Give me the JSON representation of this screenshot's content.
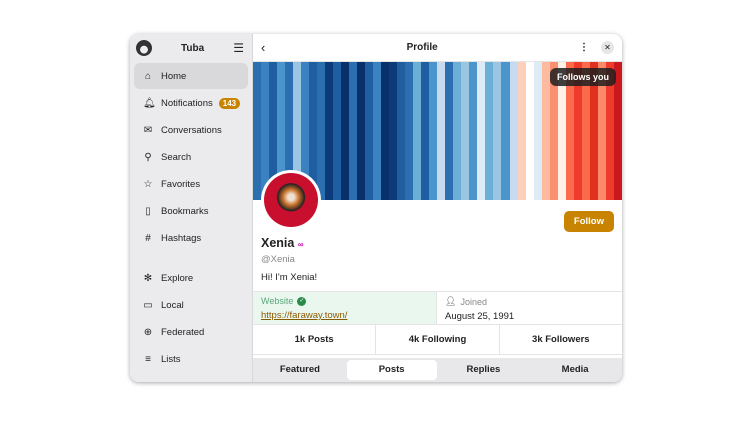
{
  "sidebar": {
    "title": "Tuba",
    "items": [
      {
        "label": "Home",
        "icon": "home-icon",
        "glyph": "⌂"
      },
      {
        "label": "Notifications",
        "icon": "bell-icon",
        "glyph": "🔔︎",
        "badge": "143"
      },
      {
        "label": "Conversations",
        "icon": "mail-icon",
        "glyph": "✉"
      },
      {
        "label": "Search",
        "icon": "search-icon",
        "glyph": "⚲"
      },
      {
        "label": "Favorites",
        "icon": "star-icon",
        "glyph": "☆"
      },
      {
        "label": "Bookmarks",
        "icon": "bookmark-icon",
        "glyph": "▯"
      },
      {
        "label": "Hashtags",
        "icon": "hashtag-icon",
        "glyph": "#"
      },
      {
        "label": "Explore",
        "icon": "explore-icon",
        "glyph": "✻"
      },
      {
        "label": "Local",
        "icon": "local-icon",
        "glyph": "▭"
      },
      {
        "label": "Federated",
        "icon": "globe-icon",
        "glyph": "⊕"
      },
      {
        "label": "Lists",
        "icon": "list-icon",
        "glyph": "≡"
      }
    ]
  },
  "header": {
    "title": "Profile"
  },
  "profile": {
    "follows_you": "Follows you",
    "follow_label": "Follow",
    "name": "Xenia",
    "emoji": "∞",
    "handle": "@Xenia",
    "bio": "Hi! I'm Xenia!",
    "fields": [
      {
        "label": "Website",
        "value": "https://faraway.town/",
        "verified": true
      },
      {
        "label": "Joined",
        "value": "August 25, 1991"
      }
    ],
    "stats": [
      "1k Posts",
      "4k Following",
      "3k Followers"
    ],
    "tabs": [
      "Featured",
      "Posts",
      "Replies",
      "Media"
    ],
    "selected_tab": "Posts"
  },
  "colors": {
    "accent": "#c88400",
    "verified": "#2a8a4a"
  }
}
